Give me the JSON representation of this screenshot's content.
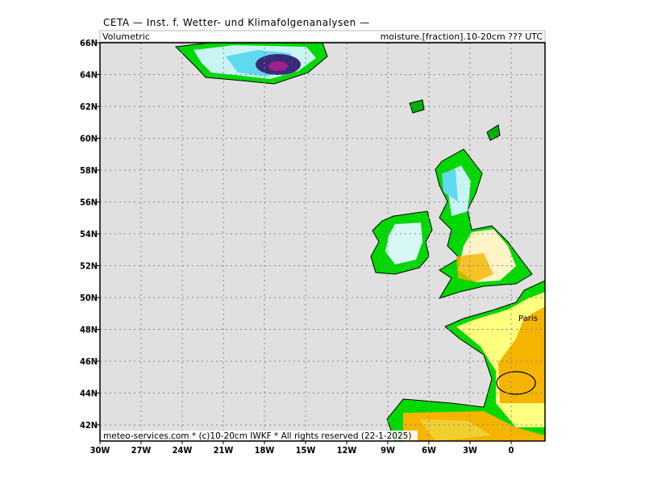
{
  "header": {
    "title": "CETA — Inst. f. Wetter- und Klimafolgenanalysen —",
    "left_label": "Volumetric",
    "right_label": "moisture.[fraction].10-20cm ??? UTC"
  },
  "map": {
    "lon_labels": [
      "30W",
      "27W",
      "24W",
      "21W",
      "18W",
      "15W",
      "12W",
      "9W",
      "6W",
      "3W",
      "0"
    ],
    "lat_labels": [
      "66N",
      "64N",
      "62N",
      "60N",
      "58N",
      "56N",
      "54N",
      "52N",
      "50N",
      "48N",
      "46N",
      "44N",
      "42N"
    ],
    "place_label": "Paris"
  },
  "footer": {
    "text": "meteo-services.com * (c)10-20cm IWKF * All rights reserved (22-1-2025)"
  }
}
